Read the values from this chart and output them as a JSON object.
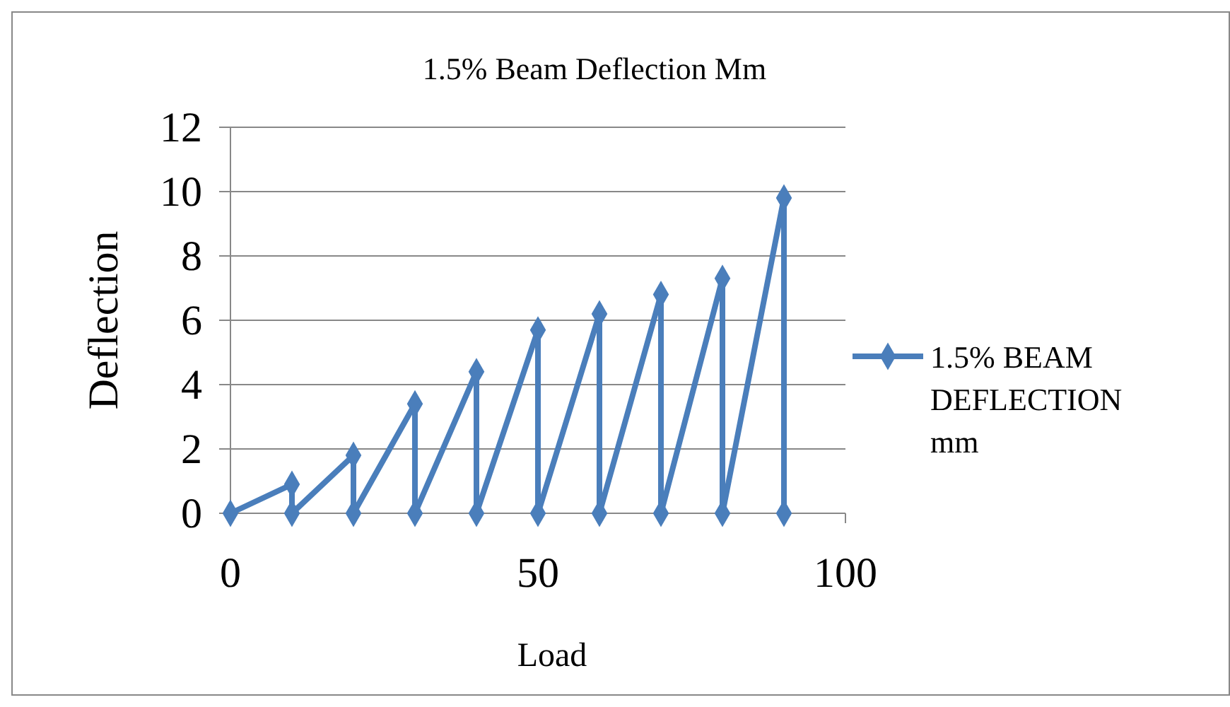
{
  "chart_data": {
    "type": "line",
    "title": "1.5% Beam Deflection Mm",
    "xlabel": "Load",
    "ylabel": "Deflection",
    "x": [
      0,
      10,
      10,
      20,
      20,
      30,
      30,
      40,
      40,
      50,
      50,
      60,
      60,
      70,
      70,
      80,
      80,
      90,
      90
    ],
    "series": [
      {
        "name": "1.5% BEAM DEFLECTION mm",
        "color": "#4a7ebb",
        "values": [
          0,
          0.9,
          0,
          1.8,
          0,
          3.4,
          0,
          4.4,
          0,
          5.7,
          0,
          6.2,
          0,
          6.8,
          0,
          7.3,
          0,
          9.8,
          0
        ]
      }
    ],
    "xlim": [
      0,
      100
    ],
    "xticks": [
      0,
      50,
      100
    ],
    "ylim": [
      0,
      12
    ],
    "yticks": [
      0,
      2,
      4,
      6,
      8,
      10,
      12
    ],
    "grid": "y",
    "legend": "right",
    "marker": "diamond",
    "line_style": "solid"
  }
}
